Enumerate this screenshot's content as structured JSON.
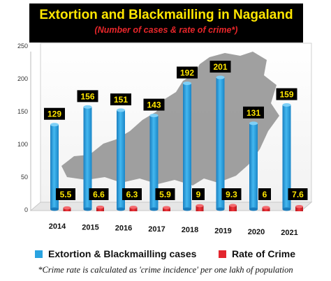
{
  "chart_data": {
    "type": "bar",
    "title": "Extortion and Blackmailling in Nagaland",
    "subtitle": "(Number of cases & rate of  crime*)",
    "categories": [
      "2014",
      "2015",
      "2016",
      "2017",
      "2018",
      "2019",
      "2020",
      "2021"
    ],
    "series": [
      {
        "name": "Extortion & Blackmailling cases",
        "values": [
          129,
          156,
          151,
          143,
          192,
          201,
          131,
          159
        ],
        "color": "#29a3e0"
      },
      {
        "name": "Rate of Crime",
        "values": [
          5.5,
          6.6,
          6.3,
          5.9,
          9,
          9.3,
          6,
          7.6
        ],
        "color": "#e3262e"
      }
    ],
    "yticks": [
      0,
      50,
      100,
      150,
      200,
      250
    ],
    "ylim": [
      0,
      250
    ],
    "grid": false,
    "legend": "bottom",
    "footnote": "*Crime rate is calculated as 'crime incidence' per one lakh of population"
  }
}
